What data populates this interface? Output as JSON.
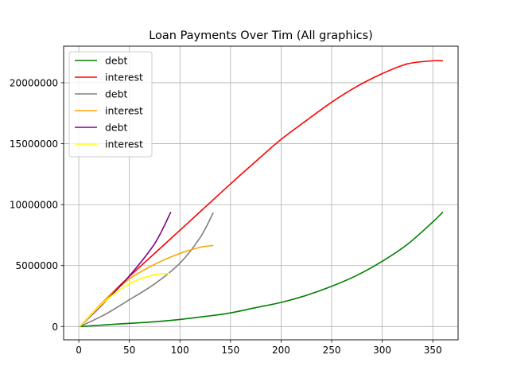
{
  "chart_data": {
    "type": "line",
    "title": "Loan Payments Over Tim (All graphics)",
    "xlabel": "",
    "ylabel": "",
    "xlim": [
      -15,
      375
    ],
    "ylim": [
      -1090000,
      23000000
    ],
    "xticks": [
      0,
      50,
      100,
      150,
      200,
      250,
      300,
      350
    ],
    "yticks": [
      0,
      5000000,
      10000000,
      15000000,
      20000000
    ],
    "xtick_labels": [
      "0",
      "50",
      "100",
      "150",
      "200",
      "250",
      "300",
      "350"
    ],
    "ytick_labels": [
      "0",
      "5000000",
      "10000000",
      "15000000",
      "20000000"
    ],
    "grid": true,
    "legend_position": "top-left",
    "series": [
      {
        "name": "debt",
        "color": "#008000",
        "x": [
          1,
          25,
          50,
          75,
          100,
          125,
          150,
          175,
          200,
          225,
          250,
          275,
          300,
          325,
          350,
          360
        ],
        "y": [
          0,
          130000,
          260000,
          390000,
          580000,
          830000,
          1120000,
          1550000,
          1980000,
          2560000,
          3300000,
          4200000,
          5350000,
          6750000,
          8580000,
          9400000
        ]
      },
      {
        "name": "interest",
        "color": "#ff0000",
        "x": [
          1,
          25,
          50,
          75,
          100,
          125,
          150,
          175,
          200,
          225,
          250,
          275,
          300,
          325,
          350,
          360
        ],
        "y": [
          0,
          2100000,
          4100000,
          6000000,
          7900000,
          9800000,
          11700000,
          13550000,
          15350000,
          16900000,
          18400000,
          19700000,
          20750000,
          21550000,
          21800000,
          21800000
        ]
      },
      {
        "name": "debt",
        "color": "#808080",
        "x": [
          1,
          25,
          50,
          75,
          100,
          120,
          133
        ],
        "y": [
          0,
          950000,
          2200000,
          3500000,
          5200000,
          7300000,
          9350000
        ]
      },
      {
        "name": "interest",
        "color": "#ffa500",
        "x": [
          1,
          25,
          50,
          75,
          100,
          120,
          133
        ],
        "y": [
          0,
          2100000,
          3900000,
          5100000,
          6000000,
          6500000,
          6650000
        ]
      },
      {
        "name": "debt",
        "color": "#800080",
        "x": [
          1,
          25,
          50,
          75,
          91
        ],
        "y": [
          0,
          1950000,
          4150000,
          6800000,
          9400000
        ]
      },
      {
        "name": "interest",
        "color": "#ffff00",
        "x": [
          1,
          25,
          50,
          75,
          91
        ],
        "y": [
          0,
          2000000,
          3500000,
          4250000,
          4350000
        ]
      }
    ]
  }
}
